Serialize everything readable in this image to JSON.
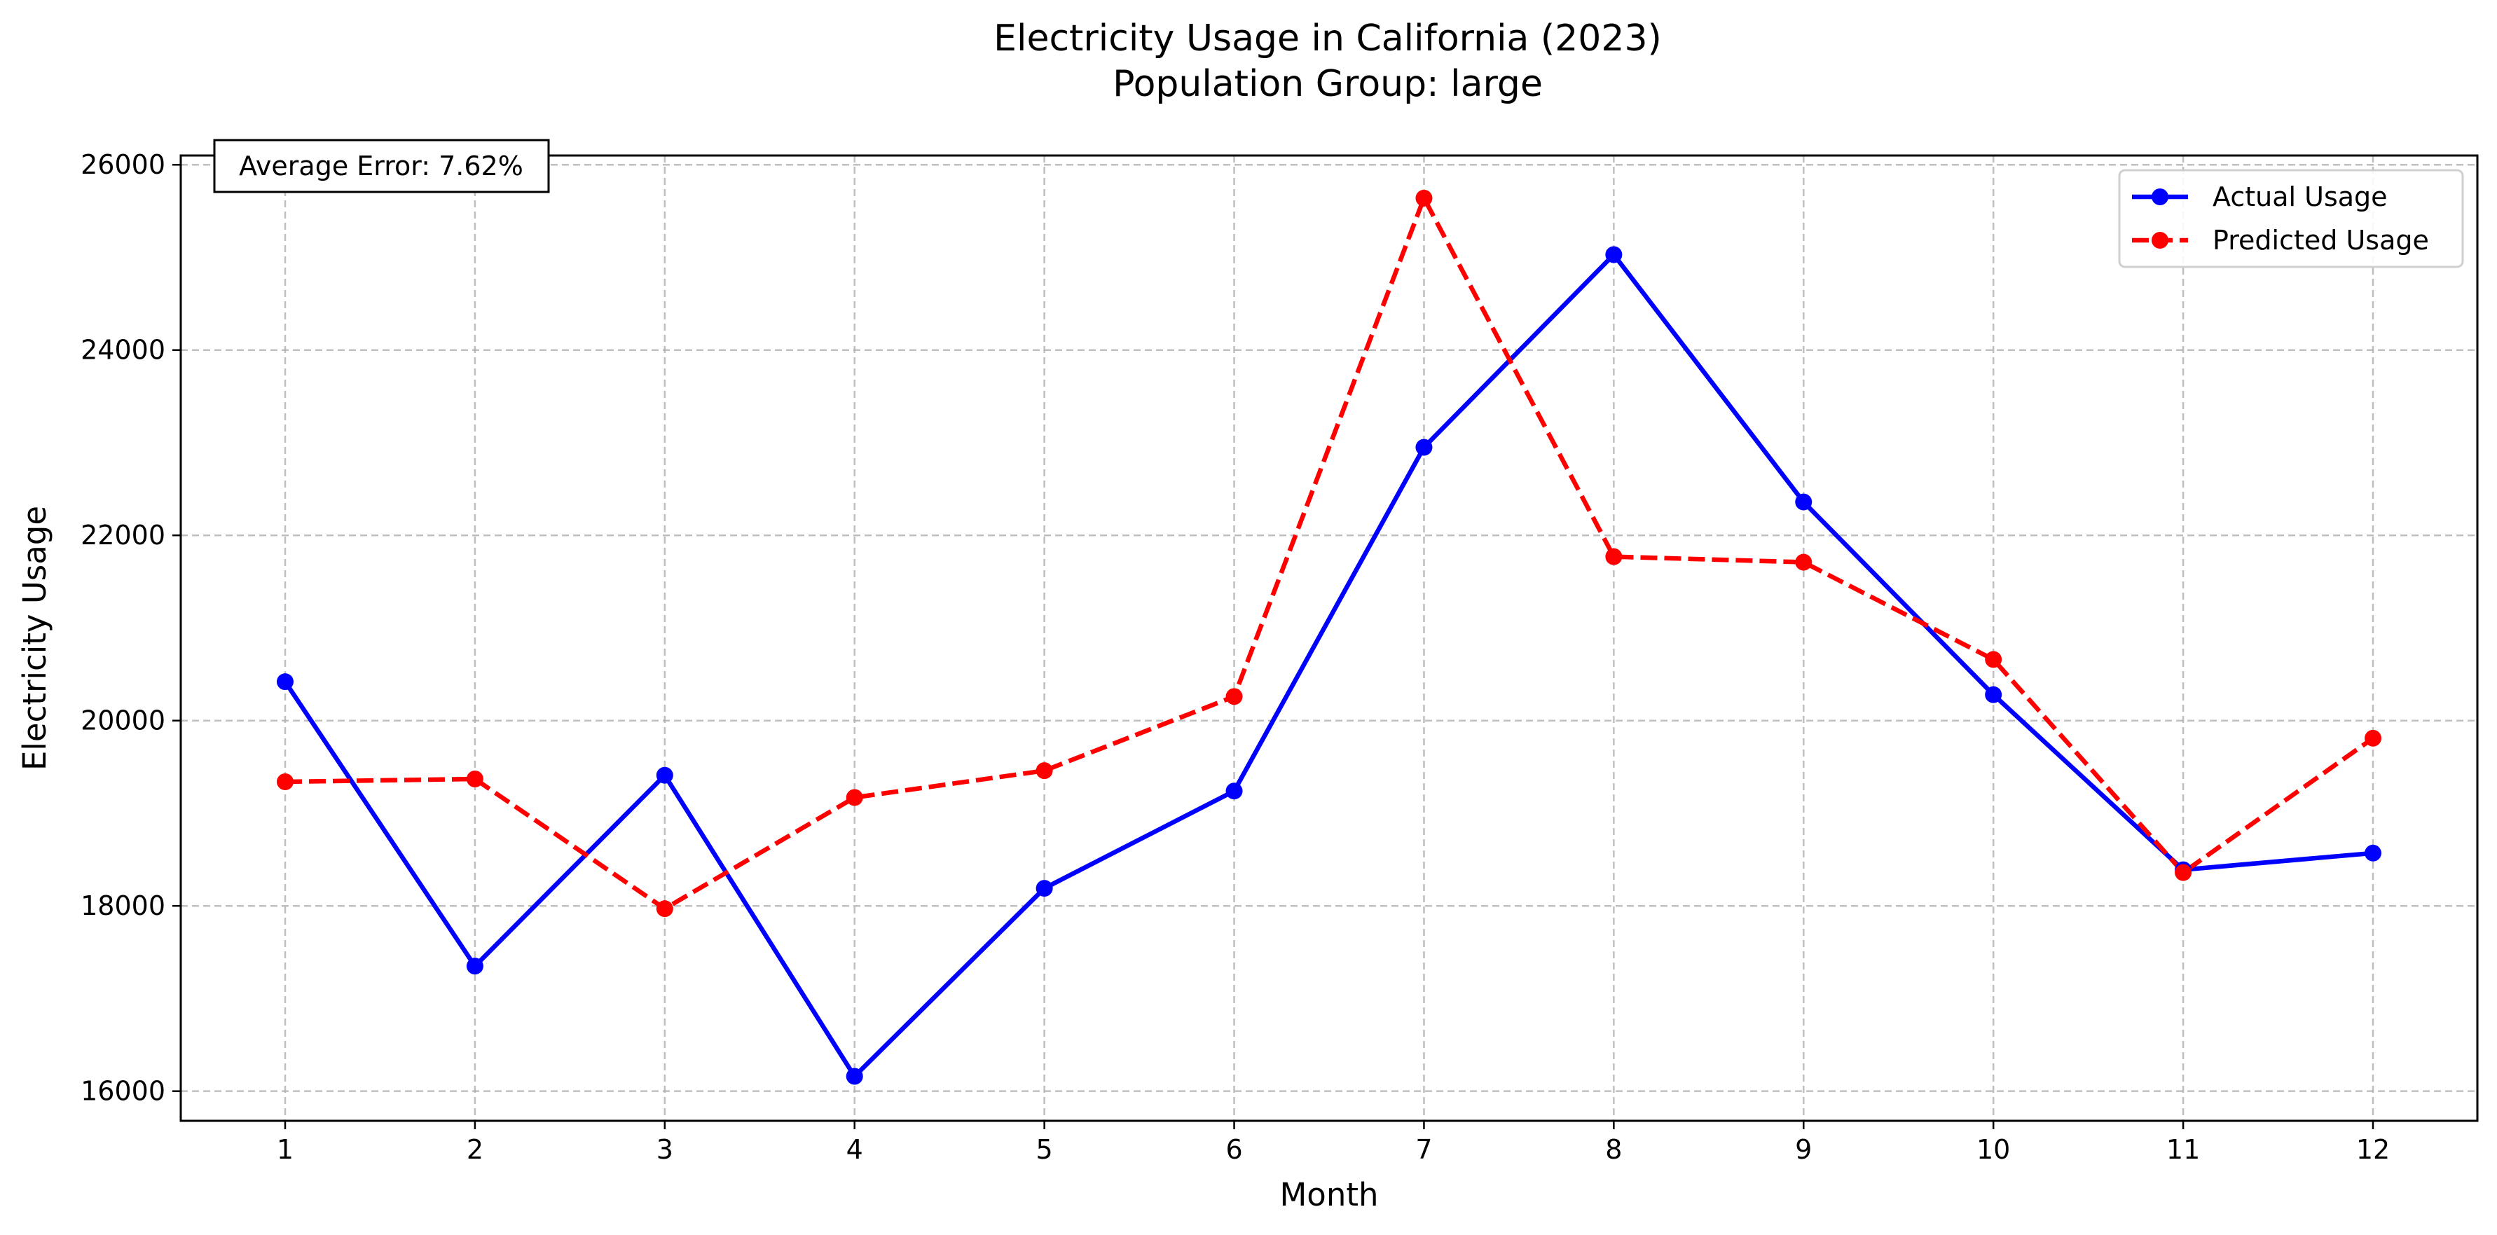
{
  "chart_data": {
    "type": "line",
    "title": "Electricity Usage in California (2023)",
    "subtitle": "Population Group: large",
    "xlabel": "Month",
    "ylabel": "Electricity Usage",
    "x": [
      1,
      2,
      3,
      4,
      5,
      6,
      7,
      8,
      9,
      10,
      11,
      12
    ],
    "xticks": [
      "1",
      "2",
      "3",
      "4",
      "5",
      "6",
      "7",
      "8",
      "9",
      "10",
      "11",
      "12"
    ],
    "yticks": [
      "16000",
      "18000",
      "20000",
      "22000",
      "24000",
      "26000"
    ],
    "ytick_values": [
      16000,
      18000,
      20000,
      22000,
      24000,
      26000
    ],
    "xlim": [
      0.45,
      12.55
    ],
    "ylim": [
      15680,
      26100
    ],
    "grid": true,
    "legend_position": "top-right",
    "annotation": "Average Error: 7.62%",
    "series": [
      {
        "name": "Actual Usage",
        "color": "#0000ff",
        "style": "solid",
        "marker": "circle",
        "values": [
          20420,
          17350,
          19410,
          16160,
          18190,
          19240,
          22950,
          25030,
          22360,
          20280,
          18390,
          18570
        ]
      },
      {
        "name": "Predicted Usage",
        "color": "#ff0000",
        "style": "dashed",
        "marker": "circle",
        "values": [
          19340,
          19370,
          17970,
          19170,
          19460,
          20260,
          25640,
          21770,
          21710,
          20660,
          18360,
          19810
        ]
      }
    ]
  }
}
